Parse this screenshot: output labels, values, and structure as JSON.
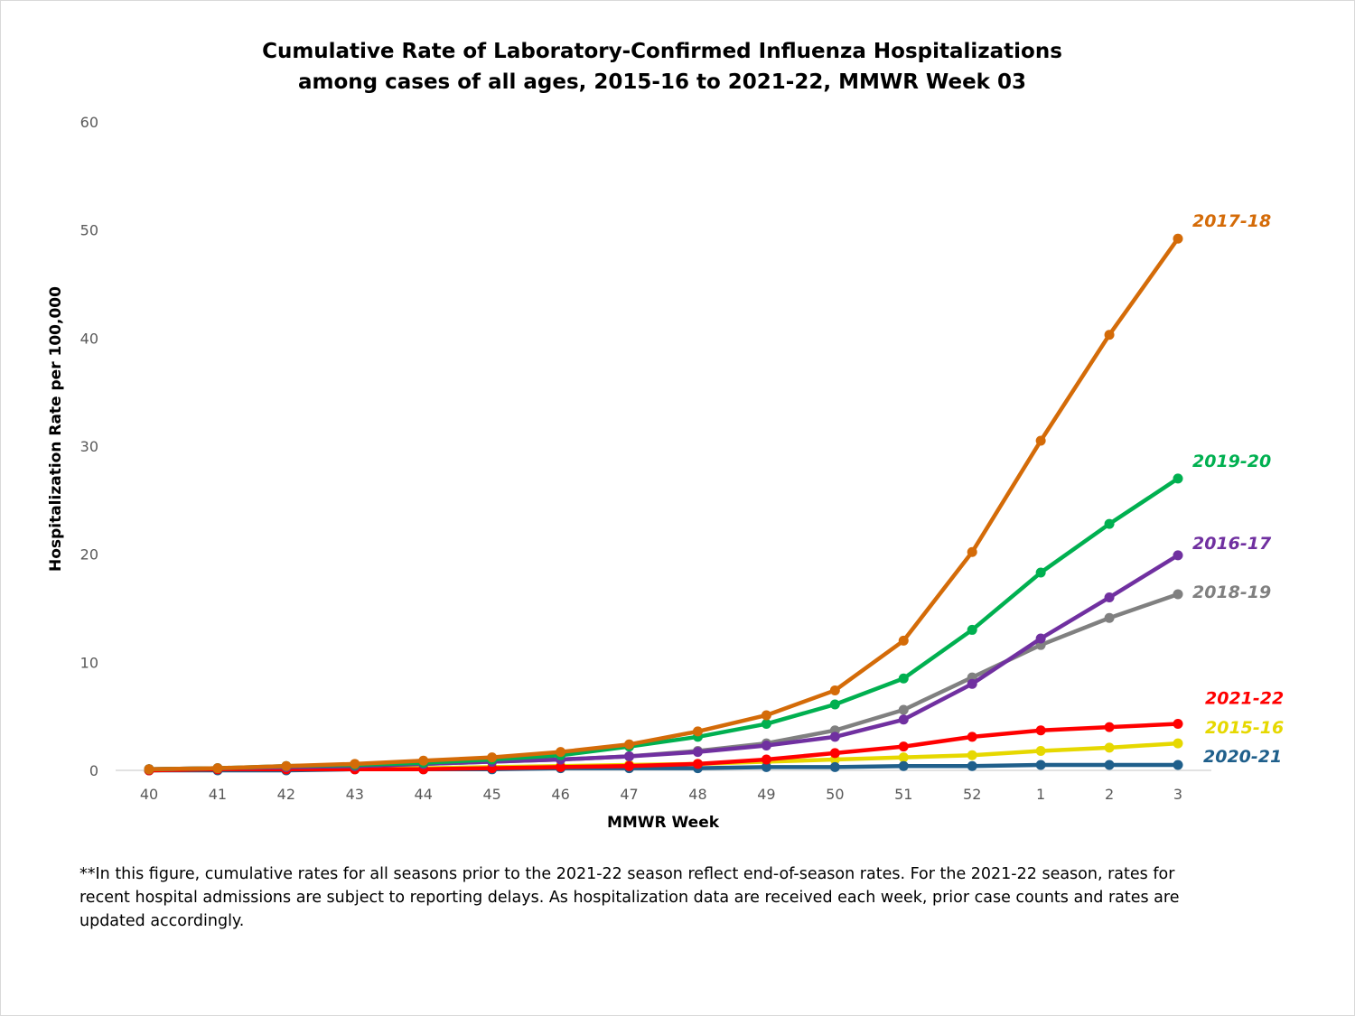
{
  "chart_data": {
    "type": "line",
    "title_line1": "Cumulative Rate of Laboratory-Confirmed Influenza Hospitalizations",
    "title_line2": "among cases of all ages, 2015-16 to 2021-22, MMWR  Week 03",
    "xlabel": "MMWR Week",
    "ylabel": "Hospitalization  Rate per 100,000",
    "categories": [
      "40",
      "41",
      "42",
      "43",
      "44",
      "45",
      "46",
      "47",
      "48",
      "49",
      "50",
      "51",
      "52",
      "1",
      "2",
      "3"
    ],
    "ylim": [
      0,
      60
    ],
    "yticks": [
      "0",
      "10",
      "20",
      "30",
      "40",
      "50",
      "60"
    ],
    "grid": false,
    "series": [
      {
        "name": "2015-16",
        "color": "#e6d800",
        "values": [
          0.0,
          0.1,
          0.1,
          0.2,
          0.2,
          0.3,
          0.4,
          0.5,
          0.6,
          0.8,
          1.0,
          1.2,
          1.4,
          1.8,
          2.1,
          2.5
        ]
      },
      {
        "name": "2020-21",
        "color": "#1f5f8b",
        "values": [
          0.0,
          0.0,
          0.0,
          0.1,
          0.1,
          0.1,
          0.2,
          0.2,
          0.2,
          0.3,
          0.3,
          0.4,
          0.4,
          0.5,
          0.5,
          0.5
        ]
      },
      {
        "name": "2021-22",
        "color": "#ff0000",
        "values": [
          0.0,
          0.1,
          0.1,
          0.1,
          0.1,
          0.2,
          0.3,
          0.4,
          0.6,
          1.0,
          1.6,
          2.2,
          3.1,
          3.7,
          4.0,
          4.3
        ]
      },
      {
        "name": "2018-19",
        "color": "#808080",
        "values": [
          0.1,
          0.2,
          0.3,
          0.4,
          0.6,
          0.8,
          1.0,
          1.3,
          1.8,
          2.5,
          3.7,
          5.6,
          8.6,
          11.6,
          14.1,
          16.3
        ]
      },
      {
        "name": "2016-17",
        "color": "#7030a0",
        "values": [
          0.1,
          0.2,
          0.3,
          0.4,
          0.6,
          0.8,
          1.0,
          1.3,
          1.7,
          2.3,
          3.1,
          4.7,
          8.0,
          12.2,
          16.0,
          19.9
        ]
      },
      {
        "name": "2019-20",
        "color": "#00b050",
        "values": [
          0.1,
          0.2,
          0.4,
          0.5,
          0.7,
          1.0,
          1.4,
          2.2,
          3.1,
          4.3,
          6.1,
          8.5,
          13.0,
          18.3,
          22.8,
          27.0
        ]
      },
      {
        "name": "2017-18",
        "color": "#d46b08",
        "values": [
          0.1,
          0.2,
          0.4,
          0.6,
          0.9,
          1.2,
          1.7,
          2.4,
          3.6,
          5.1,
          7.4,
          12.0,
          20.2,
          30.5,
          40.3,
          49.2
        ]
      }
    ]
  },
  "footnote": "**In this figure, cumulative rates for all seasons prior to the 2021-22 season reflect end-of-season rates. For the 2021-22 season, rates for recent hospital admissions are subject to reporting delays. As hospitalization data are received each week, prior case counts and rates are updated accordingly."
}
